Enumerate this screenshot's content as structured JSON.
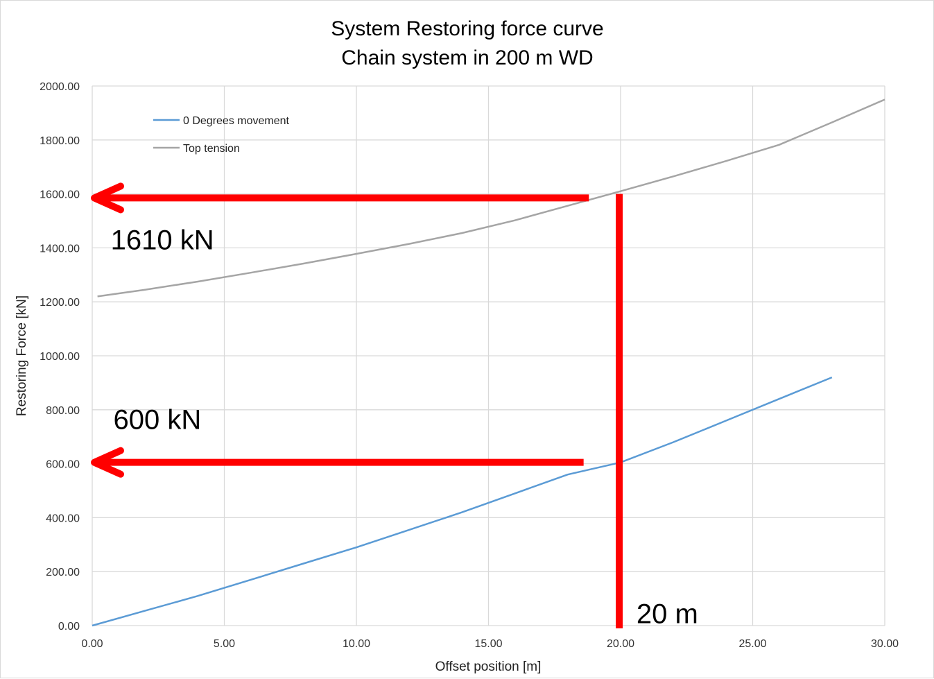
{
  "chart_data": {
    "type": "line",
    "title": "System Restoring force curve",
    "subtitle": "Chain system in 200 m WD",
    "xlabel": "Offset position [m]",
    "ylabel": "Restoring Force [kN]",
    "xlim": [
      0,
      30
    ],
    "ylim": [
      0,
      2000
    ],
    "x_ticks": [
      "0.00",
      "5.00",
      "10.00",
      "15.00",
      "20.00",
      "25.00",
      "30.00"
    ],
    "y_ticks": [
      "0.00",
      "200.00",
      "400.00",
      "600.00",
      "800.00",
      "1000.00",
      "1200.00",
      "1400.00",
      "1600.00",
      "1800.00",
      "2000.00"
    ],
    "grid": true,
    "legend_position": "top-left",
    "series": [
      {
        "name": "0 Degrees movement",
        "color": "#5b9bd5",
        "x": [
          0,
          2,
          4,
          6,
          8,
          10,
          12,
          14,
          16,
          18,
          20,
          22,
          24,
          26,
          28
        ],
        "y": [
          0,
          55,
          110,
          170,
          230,
          290,
          355,
          420,
          490,
          560,
          605,
          680,
          760,
          840,
          920
        ]
      },
      {
        "name": "Top tension",
        "color": "#a5a5a5",
        "x": [
          0.2,
          2,
          4,
          6,
          8,
          10,
          12,
          14,
          16,
          18,
          20,
          22,
          24,
          26,
          28,
          30
        ],
        "y": [
          1220,
          1245,
          1275,
          1308,
          1342,
          1378,
          1415,
          1455,
          1502,
          1556,
          1610,
          1665,
          1722,
          1782,
          1865,
          1950
        ]
      }
    ],
    "annotations": [
      {
        "text": "1610 kN",
        "x": 0.7,
        "y": 1430
      },
      {
        "text": "600 kN",
        "x": 0.8,
        "y": 765
      },
      {
        "text": "20 m",
        "x": 20.6,
        "y": 45
      }
    ],
    "markers": {
      "color": "#ff0000",
      "arrows": [
        {
          "from_x": 18.8,
          "y": 1585
        },
        {
          "from_x": 18.6,
          "y": 605
        }
      ],
      "vertical_line": {
        "x": 19.95,
        "y_from": 0,
        "y_to": 1600
      }
    }
  }
}
